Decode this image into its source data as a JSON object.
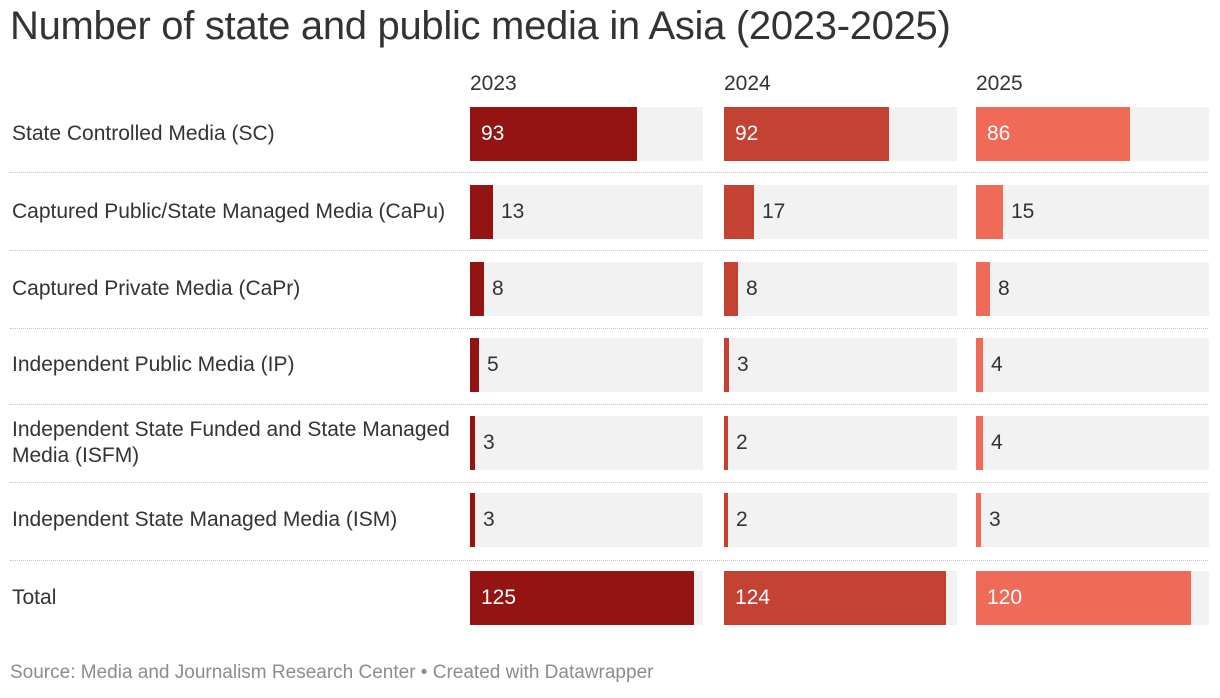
{
  "title": "Number of state and public media in Asia (2023-2025)",
  "source_line": "Source: Media and Journalism Research Center • Created with Datawrapper",
  "colors": {
    "2023": "#941313",
    "2024": "#c44234",
    "2025": "#ef6b58",
    "track": "#f2f2f2"
  },
  "chart_data": {
    "type": "table",
    "title": "Number of state and public media in Asia (2023-2025)",
    "columns": [
      "2023",
      "2024",
      "2025"
    ],
    "rows": [
      {
        "label": "State Controlled Media (SC)",
        "values": [
          93,
          92,
          86
        ]
      },
      {
        "label": "Captured Public/State Managed Media (CaPu)",
        "values": [
          13,
          17,
          15
        ]
      },
      {
        "label": "Captured Private Media (CaPr)",
        "values": [
          8,
          8,
          8
        ]
      },
      {
        "label": "Independent Public Media (IP)",
        "values": [
          5,
          3,
          4
        ]
      },
      {
        "label": "Independent State Funded and State Managed Media (ISFM)",
        "values": [
          3,
          2,
          4
        ]
      },
      {
        "label": "Independent State Managed Media (ISM)",
        "values": [
          3,
          2,
          3
        ]
      },
      {
        "label": "Total",
        "values": [
          125,
          124,
          120
        ]
      }
    ],
    "bar_max": 130,
    "source": "Source: Media and Journalism Research Center • Created with Datawrapper"
  }
}
